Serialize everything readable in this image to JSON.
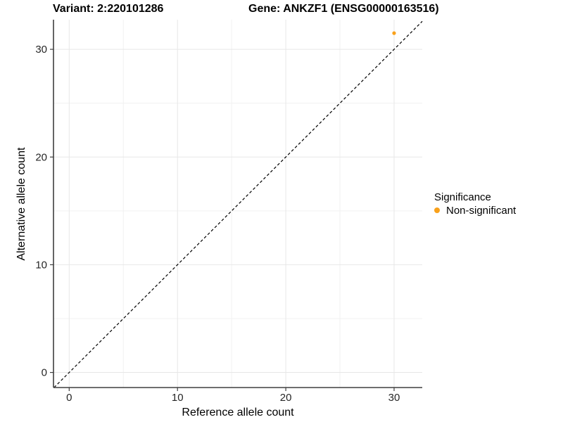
{
  "titles": {
    "variant": "Variant: 2:220101286",
    "gene": "Gene: ANKZF1 (ENSG00000163516)"
  },
  "legend": {
    "title": "Significance",
    "items": [
      {
        "label": "Non-significant",
        "color": "#F9A11B"
      }
    ]
  },
  "chart_data": {
    "type": "scatter",
    "title_left": "Variant: 2:220101286",
    "title_right": "Gene: ANKZF1 (ENSG00000163516)",
    "xlabel": "Reference allele count",
    "ylabel": "Alternative allele count",
    "xlim": [
      -1.45,
      32.6
    ],
    "ylim": [
      -1.4,
      32.75
    ],
    "xticks": [
      0,
      10,
      20,
      30
    ],
    "yticks": [
      0,
      10,
      20,
      30
    ],
    "xticks_minor": [
      5,
      15,
      25
    ],
    "yticks_minor": [
      5,
      15,
      25
    ],
    "grid": "on",
    "legend_position": "right",
    "legend_title": "Significance",
    "series": [
      {
        "name": "Non-significant",
        "color": "#F9A11B",
        "points": [
          {
            "x": 30,
            "y": 31.5
          }
        ]
      }
    ],
    "reference_line": {
      "kind": "identity",
      "style": "dashed",
      "color": "#000000"
    }
  },
  "style": {
    "axis_color": "#3f3f3f",
    "tick_label_color": "#262626",
    "grid_major_color": "#e7e7e7",
    "grid_minor_color": "#f1f1f1"
  }
}
